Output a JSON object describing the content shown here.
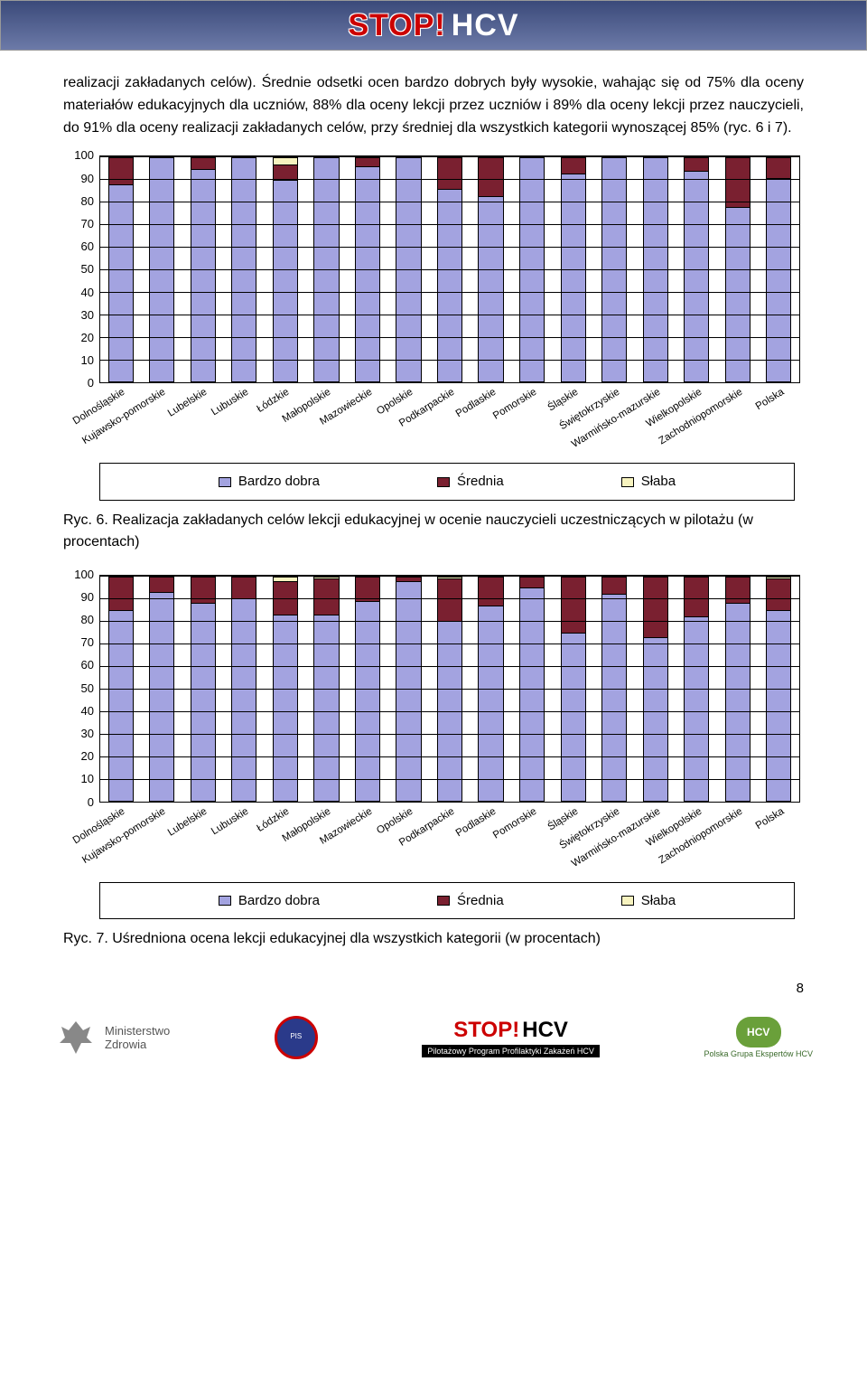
{
  "banner": {
    "stop": "STOP!",
    "hcv": "HCV"
  },
  "intro": "realizacji zakładanych celów). Średnie odsetki ocen bardzo dobrych były wysokie, wahając się od 75% dla oceny materiałów edukacyjnych dla uczniów, 88% dla oceny lekcji przez uczniów i 89% dla oceny lekcji przez nauczycieli, do 91% dla oceny realizacji zakładanych celów, przy średniej dla wszystkich kategorii wynoszącej 85% (ryc. 6 i 7).",
  "chart_common": {
    "categories": [
      "Dolnośląskie",
      "Kujawsko-pomorskie",
      "Lubelskie",
      "Lubuskie",
      "Łódzkie",
      "Małopolskie",
      "Mazowieckie",
      "Opolskie",
      "Podkarpackie",
      "Podlaskie",
      "Pomorskie",
      "Śląskie",
      "Świętokrzyskie",
      "Warmińsko-mazurskie",
      "Wielkopolskie",
      "Zachodniopomorskie",
      "Polska"
    ],
    "colors": {
      "bardzo_dobra": "#a3a3e0",
      "srednia": "#7a2030",
      "slaba": "#f7f3bf",
      "grid": "#000000",
      "background": "#ffffff"
    },
    "y_axis": {
      "min": 0,
      "max": 100,
      "labels": [
        0,
        10,
        20,
        30,
        40,
        50,
        60,
        70,
        80,
        90,
        100
      ]
    },
    "legend": [
      {
        "label": "Bardzo dobra",
        "key": "bardzo_dobra"
      },
      {
        "label": "Średnia",
        "key": "srednia"
      },
      {
        "label": "Słaba",
        "key": "slaba"
      }
    ],
    "bar_width_pct": 62,
    "label_fontsize": 13,
    "xlabel_fontsize": 11.5,
    "xlabel_angle_deg": -32
  },
  "chart6": {
    "type": "stacked_bar",
    "series": {
      "bardzo_dobra": [
        88,
        100,
        95,
        100,
        90,
        100,
        96,
        100,
        86,
        83,
        100,
        93,
        100,
        100,
        94,
        78,
        91
      ],
      "srednia": [
        12,
        0,
        5,
        0,
        7,
        0,
        4,
        0,
        14,
        17,
        0,
        7,
        0,
        0,
        6,
        22,
        9
      ],
      "slaba": [
        0,
        0,
        0,
        0,
        3,
        0,
        0,
        0,
        0,
        0,
        0,
        0,
        0,
        0,
        0,
        0,
        0
      ]
    }
  },
  "caption6": "Ryc. 6. Realizacja zakładanych celów lekcji edukacyjnej w ocenie nauczycieli uczestniczących w pilotażu (w procentach)",
  "chart7": {
    "type": "stacked_bar",
    "series": {
      "bardzo_dobra": [
        85,
        93,
        88,
        90,
        83,
        83,
        89,
        98,
        80,
        87,
        95,
        75,
        92,
        73,
        82,
        88,
        85
      ],
      "srednia": [
        15,
        7,
        12,
        10,
        15,
        16,
        11,
        2,
        19,
        13,
        5,
        25,
        8,
        27,
        18,
        12,
        14
      ],
      "slaba": [
        0,
        0,
        0,
        0,
        2,
        1,
        0,
        0,
        1,
        0,
        0,
        0,
        0,
        0,
        0,
        0,
        1
      ]
    }
  },
  "caption7": "Ryc. 7. Uśredniona ocena lekcji edukacyjnej dla wszystkich kategorii (w procentach)",
  "footer": {
    "ministry": "Ministerstwo\nZdrowia",
    "pis": "PIS",
    "stophcv_desc": "Pilotażowy Program Profilaktyki Zakażeń HCV",
    "hcv_group": "Polska Grupa Ekspertów HCV",
    "pagenum": "8"
  }
}
